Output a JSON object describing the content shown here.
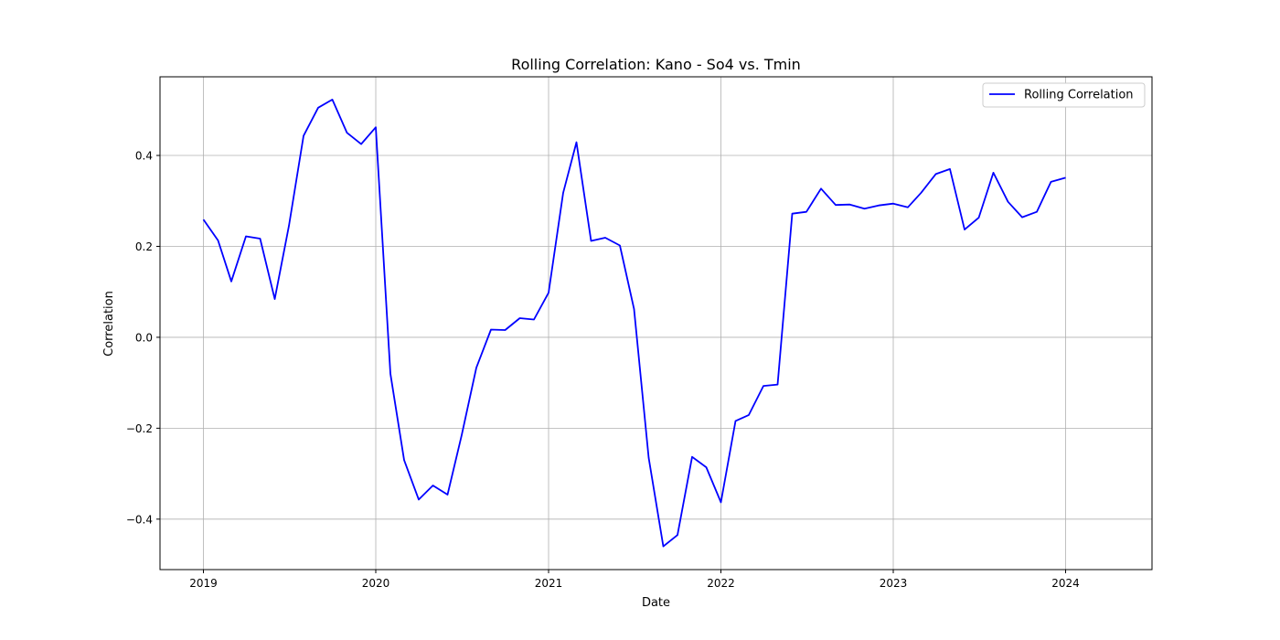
{
  "chart_data": {
    "type": "line",
    "title": "Rolling Correlation: Kano - So4 vs. Tmin",
    "xlabel": "Date",
    "ylabel": "Correlation",
    "x_ticks": [
      "2019",
      "2020",
      "2021",
      "2022",
      "2023",
      "2024"
    ],
    "y_ticks": [
      "−0.4",
      "−0.2",
      "0.0",
      "0.2",
      "0.4"
    ],
    "y_tick_values": [
      -0.4,
      -0.2,
      0.0,
      0.2,
      0.4
    ],
    "xlim": [
      "2018-10-01",
      "2024-07-02"
    ],
    "ylim": [
      -0.511,
      0.573
    ],
    "grid": true,
    "legend_position": "top-right",
    "series": [
      {
        "name": "Rolling Correlation",
        "color": "#0000ff",
        "x": [
          "2019-01-01",
          "2019-02-01",
          "2019-03-01",
          "2019-04-01",
          "2019-05-01",
          "2019-06-01",
          "2019-07-01",
          "2019-08-01",
          "2019-09-01",
          "2019-10-01",
          "2019-11-01",
          "2019-12-01",
          "2020-01-01",
          "2020-02-01",
          "2020-03-01",
          "2020-04-01",
          "2020-05-01",
          "2020-06-01",
          "2020-07-01",
          "2020-08-01",
          "2020-09-01",
          "2020-10-01",
          "2020-11-01",
          "2020-12-01",
          "2021-01-01",
          "2021-02-01",
          "2021-03-01",
          "2021-04-01",
          "2021-05-01",
          "2021-06-01",
          "2021-07-01",
          "2021-08-01",
          "2021-09-01",
          "2021-10-01",
          "2021-11-01",
          "2021-12-01",
          "2022-01-01",
          "2022-02-01",
          "2022-03-01",
          "2022-04-01",
          "2022-05-01",
          "2022-06-01",
          "2022-07-01",
          "2022-08-01",
          "2022-09-01",
          "2022-10-01",
          "2022-11-01",
          "2022-12-01",
          "2023-01-01",
          "2023-02-01",
          "2023-03-01",
          "2023-04-01",
          "2023-05-01",
          "2023-06-01",
          "2023-07-01",
          "2023-08-01",
          "2023-09-01",
          "2023-10-01",
          "2023-11-01",
          "2023-12-01",
          "2024-01-01"
        ],
        "values": [
          0.259,
          0.213,
          0.123,
          0.222,
          0.217,
          0.084,
          0.245,
          0.443,
          0.505,
          0.523,
          0.45,
          0.425,
          0.462,
          -0.08,
          -0.27,
          -0.357,
          -0.326,
          -0.346,
          -0.215,
          -0.067,
          0.017,
          0.016,
          0.042,
          0.039,
          0.098,
          0.318,
          0.429,
          0.212,
          0.219,
          0.202,
          0.062,
          -0.265,
          -0.46,
          -0.435,
          -0.263,
          -0.286,
          -0.363,
          -0.184,
          -0.171,
          -0.107,
          -0.104,
          0.272,
          0.276,
          0.327,
          0.291,
          0.292,
          0.283,
          0.29,
          0.294,
          0.286,
          0.318,
          0.359,
          0.37,
          0.237,
          0.263,
          0.362,
          0.298,
          0.264,
          0.276,
          0.342,
          0.351
        ]
      }
    ]
  }
}
